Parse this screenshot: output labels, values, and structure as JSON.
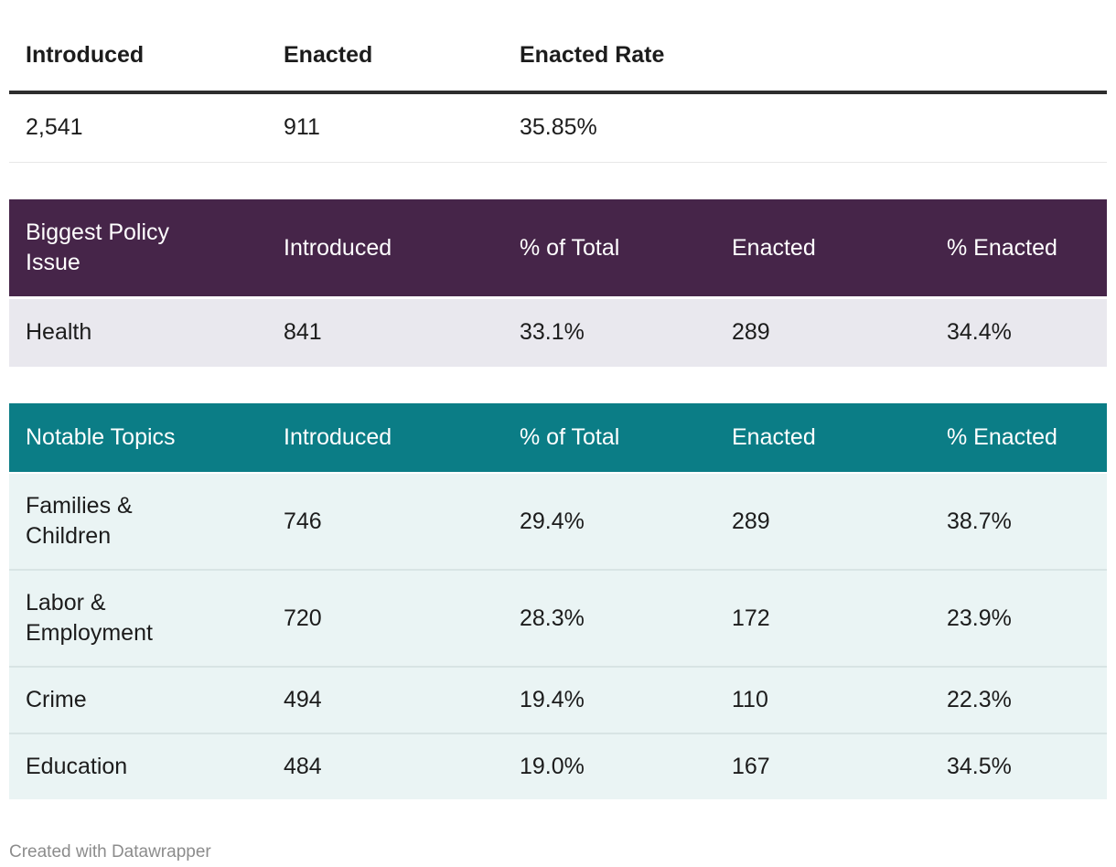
{
  "chart_data": [
    {
      "type": "table",
      "columns": [
        "Introduced",
        "Enacted",
        "Enacted Rate"
      ],
      "rows": [
        [
          "2,541",
          "911",
          "35.85%"
        ]
      ]
    },
    {
      "type": "table",
      "columns": [
        "Biggest Policy Issue",
        "Introduced",
        "% of Total",
        "Enacted",
        "% Enacted"
      ],
      "rows": [
        [
          "Health",
          "841",
          "33.1%",
          "289",
          "34.4%"
        ]
      ]
    },
    {
      "type": "table",
      "columns": [
        "Notable Topics",
        "Introduced",
        "% of Total",
        "Enacted",
        "% Enacted"
      ],
      "rows": [
        [
          "Families & Children",
          "746",
          "29.4%",
          "289",
          "38.7%"
        ],
        [
          "Labor & Employment",
          "720",
          "28.3%",
          "172",
          "23.9%"
        ],
        [
          "Crime",
          "494",
          "19.4%",
          "110",
          "22.3%"
        ],
        [
          "Education",
          "484",
          "19.0%",
          "167",
          "34.5%"
        ]
      ]
    }
  ],
  "footer": {
    "credit": "Created with Datawrapper"
  },
  "colors": {
    "policy_header_bg": "#462549",
    "policy_row_bg": "#e9e8ee",
    "topics_header_bg": "#0b7d86",
    "topics_row_bg": "#eaf4f4",
    "row_separator": "#d8e4e4",
    "summary_header_rule": "#2e2e2e",
    "summary_row_rule": "#e8e8e8",
    "body_text": "#1c1c1c",
    "header_text": "#ffffff",
    "credit_text": "#8c8c8c"
  }
}
